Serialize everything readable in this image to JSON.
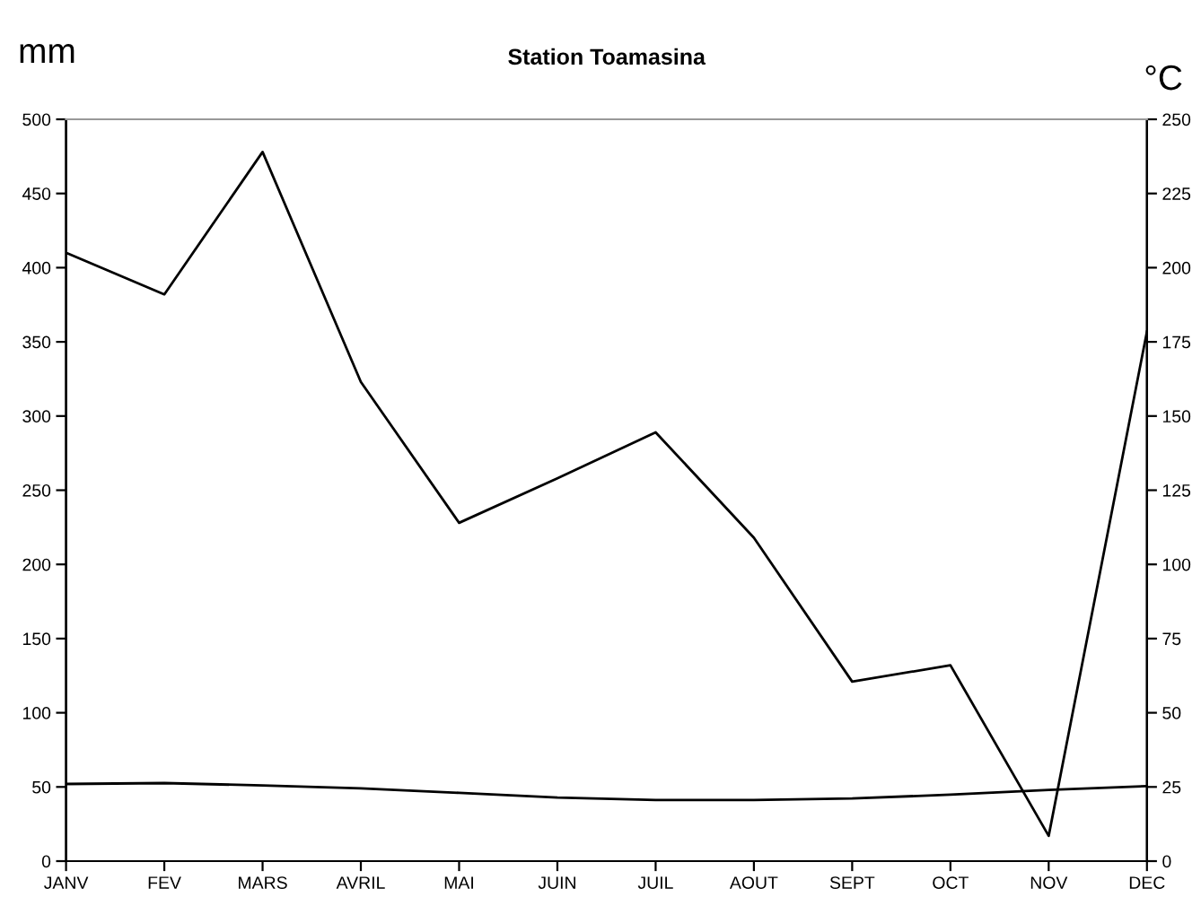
{
  "chart_data": {
    "type": "line",
    "title": "Station Toamasina",
    "ylabel": "mm",
    "y2label": "°C",
    "categories": [
      "JANV",
      "FEV",
      "MARS",
      "AVRIL",
      "MAI",
      "JUIN",
      "JUIL",
      "AOUT",
      "SEPT",
      "OCT",
      "NOV",
      "DEC"
    ],
    "series": [
      {
        "color": "#000000",
        "values": [
          410,
          382,
          478,
          323,
          228,
          258,
          289,
          218,
          121,
          132,
          17,
          357
        ]
      },
      {
        "color": "#000000",
        "axis": "y2",
        "values": [
          26,
          26.3,
          25.5,
          24.5,
          23,
          21.4,
          20.6,
          20.6,
          21.1,
          22.4,
          24,
          25.3
        ]
      }
    ],
    "ylim": [
      0,
      500
    ],
    "yticks": [
      0,
      50,
      100,
      150,
      200,
      250,
      300,
      350,
      400,
      450,
      500
    ],
    "y2lim": [
      0,
      250
    ],
    "y2ticks": [
      0,
      25,
      50,
      75,
      100,
      125,
      150,
      175,
      200,
      225,
      250
    ],
    "grid": false,
    "legend": false,
    "marker": "none",
    "line_style": "solid"
  }
}
